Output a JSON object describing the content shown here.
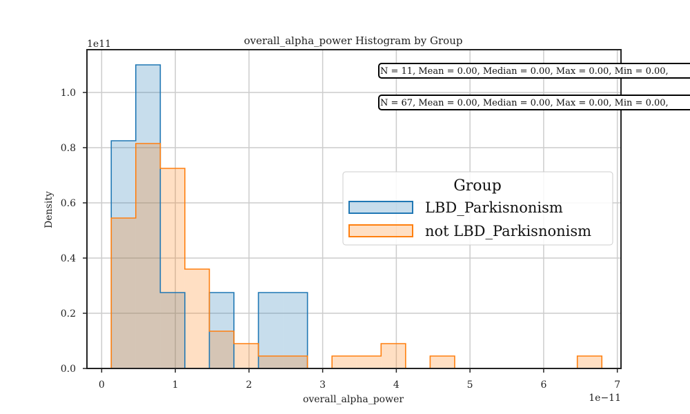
{
  "chart_data": {
    "type": "histogram",
    "title": "overall_alpha_power Histogram by Group",
    "xlabel": "overall_alpha_power",
    "ylabel": "Density",
    "x_scale_label": "1e−11",
    "y_scale_label": "1e11",
    "xlim": [
      -0.2,
      7.05
    ],
    "ylim": [
      0,
      1.155
    ],
    "x_ticks": [
      0,
      1,
      2,
      3,
      4,
      5,
      6,
      7
    ],
    "x_tick_labels": [
      "0",
      "1",
      "2",
      "3",
      "4",
      "5",
      "6",
      "7"
    ],
    "y_ticks": [
      0.0,
      0.2,
      0.4,
      0.6,
      0.8,
      1.0
    ],
    "y_tick_labels": [
      "0.0",
      "0.2",
      "0.4",
      "0.6",
      "0.8",
      "1.0"
    ],
    "grid": true,
    "bin_edges": [
      0.13,
      0.463,
      0.796,
      1.129,
      1.462,
      1.795,
      2.128,
      2.461,
      2.794,
      3.127,
      3.46,
      3.793,
      4.126,
      4.459,
      4.792,
      5.125,
      5.458,
      5.791,
      6.124,
      6.457,
      6.79
    ],
    "series": [
      {
        "name": "LBD_Parkisnonism",
        "color": "#1f77b4",
        "fill": "rgba(31,119,180,0.25)",
        "values": [
          0.825,
          1.1,
          0.275,
          0,
          0.275,
          0,
          0.275,
          0.275,
          0,
          0,
          0,
          0,
          0,
          0,
          0,
          0,
          0,
          0,
          0,
          0
        ]
      },
      {
        "name": "not LBD_Parkisnonism",
        "color": "#ff7f0e",
        "fill": "rgba(255,127,14,0.25)",
        "values": [
          0.545,
          0.815,
          0.725,
          0.36,
          0.135,
          0.09,
          0.045,
          0.045,
          0,
          0.045,
          0.045,
          0.09,
          0,
          0.045,
          0,
          0,
          0,
          0,
          0,
          0.045
        ]
      }
    ],
    "stats": [
      "N = 11, Mean = 0.00, Median = 0.00, Max = 0.00, Min = 0.00,",
      "N = 67, Mean = 0.00, Median = 0.00, Max = 0.00, Min = 0.00,"
    ],
    "legend": {
      "title": "Group",
      "placement": "center-right"
    }
  }
}
